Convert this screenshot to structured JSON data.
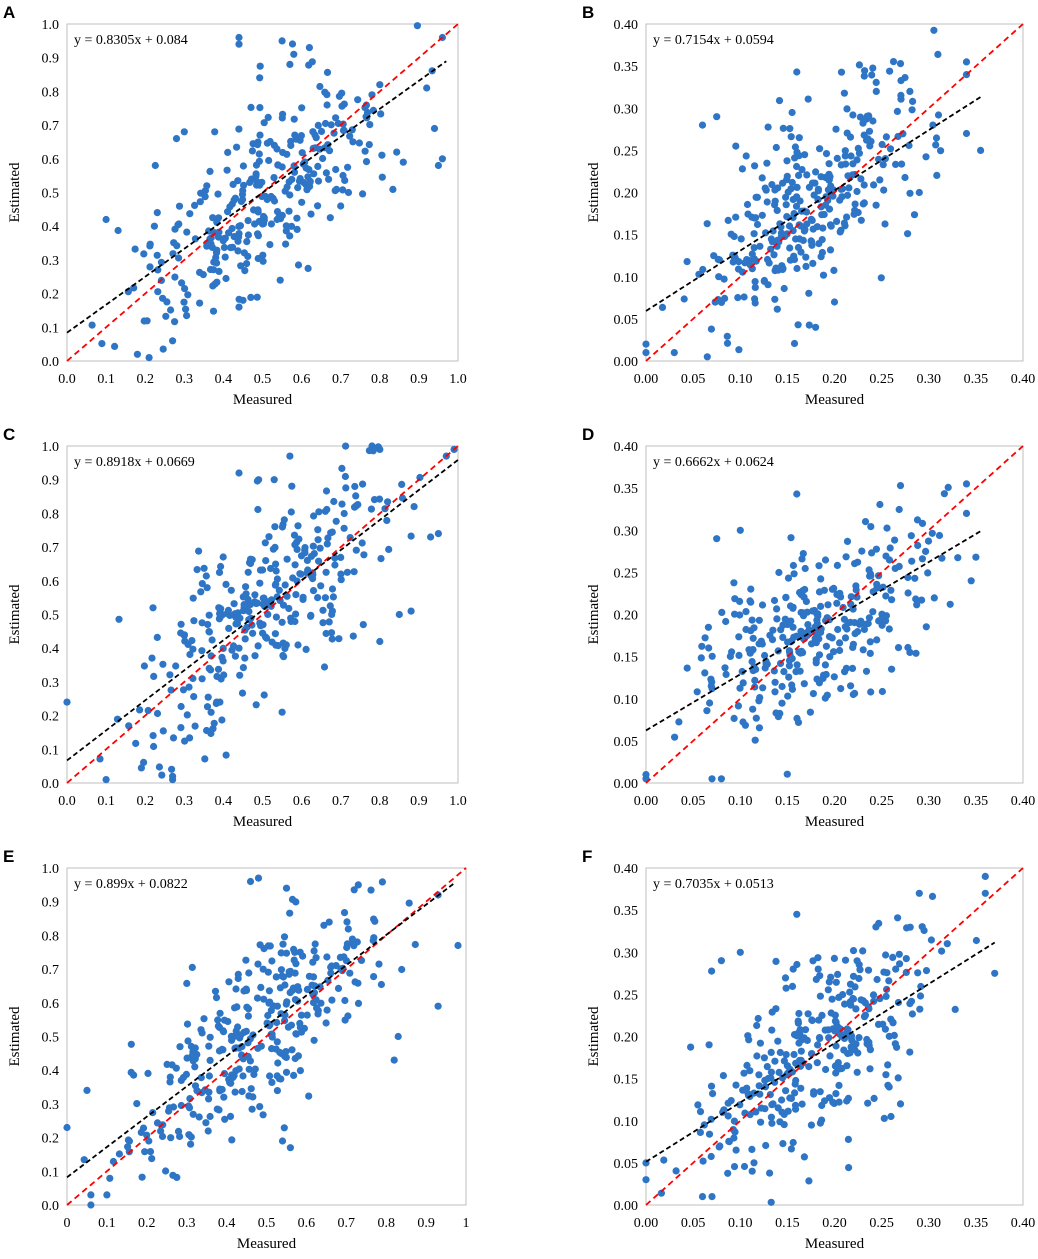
{
  "figure": {
    "colors": {
      "point": "#2e75c6",
      "fit_line": "#000000",
      "identity_line": "#ff0000",
      "frame": "#bfbfbf"
    }
  },
  "chart_data": [
    {
      "panel": "A",
      "type": "scatter",
      "xlabel": "Measured",
      "ylabel": "Estimated",
      "equation": "y = 0.8305x + 0.084",
      "fit": {
        "slope": 0.8305,
        "intercept": 0.084,
        "x_range": [
          0,
          0.97
        ]
      },
      "identity_line": true,
      "xlim": [
        0,
        1.0
      ],
      "ylim": [
        0,
        1.0
      ],
      "xticks": [
        "0.0",
        "0.1",
        "0.2",
        "0.3",
        "0.4",
        "0.5",
        "0.6",
        "0.7",
        "0.8",
        "0.9",
        "1.0"
      ],
      "yticks": [
        "0.0",
        "0.1",
        "0.2",
        "0.3",
        "0.4",
        "0.5",
        "0.6",
        "0.7",
        "0.8",
        "0.9",
        "1.0"
      ],
      "point_count": 330,
      "spread": 0.13,
      "seed": 11,
      "points": [
        [
          0.96,
          0.96
        ],
        [
          0.44,
          0.96
        ],
        [
          0.44,
          0.94
        ],
        [
          0.55,
          0.95
        ],
        [
          0.62,
          0.93
        ],
        [
          0.58,
          0.91
        ],
        [
          0.57,
          0.88
        ],
        [
          0.92,
          0.81
        ],
        [
          0.94,
          0.69
        ],
        [
          0.96,
          0.6
        ],
        [
          0.95,
          0.58
        ],
        [
          0.1,
          0.42
        ],
        [
          0.3,
          0.68
        ],
        [
          0.28,
          0.66
        ],
        [
          0.27,
          0.06
        ],
        [
          0.18,
          0.02
        ],
        [
          0.21,
          0.01
        ],
        [
          0.44,
          0.16
        ],
        [
          0.45,
          0.18
        ],
        [
          0.78,
          0.79
        ],
        [
          0.8,
          0.82
        ],
        [
          0.86,
          0.59
        ],
        [
          0.72,
          0.5
        ],
        [
          0.7,
          0.46
        ]
      ]
    },
    {
      "panel": "B",
      "type": "scatter",
      "xlabel": "Measured",
      "ylabel": "Estimated",
      "equation": "y = 0.7154x + 0.0594",
      "fit": {
        "slope": 0.7154,
        "intercept": 0.0594,
        "x_range": [
          0,
          0.355
        ]
      },
      "identity_line": true,
      "xlim": [
        0,
        0.4
      ],
      "ylim": [
        0,
        0.4
      ],
      "xticks": [
        "0.00",
        "0.05",
        "0.10",
        "0.15",
        "0.20",
        "0.25",
        "0.30",
        "0.35",
        "0.40"
      ],
      "yticks": [
        "0.00",
        "0.05",
        "0.10",
        "0.15",
        "0.20",
        "0.25",
        "0.30",
        "0.35",
        "0.40"
      ],
      "point_count": 330,
      "spread": 0.052,
      "seed": 23,
      "points": [
        [
          0.34,
          0.355
        ],
        [
          0.27,
          0.353
        ],
        [
          0.16,
          0.343
        ],
        [
          0.34,
          0.34
        ],
        [
          0.355,
          0.25
        ],
        [
          0.34,
          0.27
        ],
        [
          0.075,
          0.29
        ],
        [
          0.06,
          0.28
        ],
        [
          0.155,
          0.295
        ],
        [
          0.28,
          0.32
        ],
        [
          0.065,
          0.005
        ],
        [
          0.0,
          0.02
        ],
        [
          0.0,
          0.01
        ],
        [
          0.03,
          0.01
        ],
        [
          0.18,
          0.04
        ],
        [
          0.2,
          0.07
        ],
        [
          0.29,
          0.2
        ]
      ]
    },
    {
      "panel": "C",
      "type": "scatter",
      "xlabel": "Measured",
      "ylabel": "Estimated",
      "equation": "y = 0.8918x + 0.0669",
      "fit": {
        "slope": 0.8918,
        "intercept": 0.0669,
        "x_range": [
          0,
          1.0
        ]
      },
      "identity_line": true,
      "xlim": [
        0,
        1.0
      ],
      "ylim": [
        0,
        1.0
      ],
      "xticks": [
        "0.0",
        "0.1",
        "0.2",
        "0.3",
        "0.4",
        "0.5",
        "0.6",
        "0.7",
        "0.8",
        "0.9",
        "1.0"
      ],
      "yticks": [
        "0.0",
        "0.1",
        "0.2",
        "0.3",
        "0.4",
        "0.5",
        "0.6",
        "0.7",
        "0.8",
        "0.9",
        "1.0"
      ],
      "point_count": 330,
      "spread": 0.13,
      "seed": 37,
      "points": [
        [
          0.0,
          0.24
        ],
        [
          0.78,
          1.0
        ],
        [
          0.8,
          0.99
        ],
        [
          0.99,
          0.99
        ],
        [
          0.97,
          0.97
        ],
        [
          0.57,
          0.97
        ],
        [
          0.44,
          0.92
        ],
        [
          0.49,
          0.9
        ],
        [
          0.53,
          0.9
        ],
        [
          0.95,
          0.74
        ],
        [
          0.93,
          0.73
        ],
        [
          0.27,
          0.01
        ],
        [
          0.27,
          0.02
        ],
        [
          0.1,
          0.01
        ],
        [
          0.55,
          0.21
        ],
        [
          0.88,
          0.51
        ],
        [
          0.85,
          0.5
        ],
        [
          0.8,
          0.42
        ],
        [
          0.22,
          0.52
        ]
      ]
    },
    {
      "panel": "D",
      "type": "scatter",
      "xlabel": "Measured",
      "ylabel": "Estimated",
      "equation": "y = 0.6662x + 0.0624",
      "fit": {
        "slope": 0.6662,
        "intercept": 0.0624,
        "x_range": [
          0,
          0.355
        ]
      },
      "identity_line": true,
      "xlim": [
        0,
        0.4
      ],
      "ylim": [
        0,
        0.4
      ],
      "xticks": [
        "0.00",
        "0.05",
        "0.10",
        "0.15",
        "0.20",
        "0.25",
        "0.30",
        "0.35",
        "0.40"
      ],
      "yticks": [
        "0.00",
        "0.05",
        "0.10",
        "0.15",
        "0.20",
        "0.25",
        "0.30",
        "0.35",
        "0.40"
      ],
      "point_count": 330,
      "spread": 0.052,
      "seed": 41,
      "points": [
        [
          0.34,
          0.355
        ],
        [
          0.16,
          0.343
        ],
        [
          0.27,
          0.353
        ],
        [
          0.35,
          0.268
        ],
        [
          0.345,
          0.24
        ],
        [
          0.34,
          0.32
        ],
        [
          0.075,
          0.29
        ],
        [
          0.1,
          0.3
        ],
        [
          0.07,
          0.005
        ],
        [
          0.08,
          0.005
        ],
        [
          0.0,
          0.01
        ],
        [
          0.0,
          0.005
        ],
        [
          0.22,
          0.105
        ],
        [
          0.28,
          0.155
        ]
      ]
    },
    {
      "panel": "E",
      "type": "scatter",
      "xlabel": "Measured",
      "ylabel": "Estimated",
      "equation": "y = 0.899x + 0.0822",
      "fit": {
        "slope": 0.899,
        "intercept": 0.0822,
        "x_range": [
          0,
          0.97
        ]
      },
      "identity_line": true,
      "xlim": [
        0,
        1.0
      ],
      "ylim": [
        0,
        1.0
      ],
      "xticks": [
        "0",
        "0.1",
        "0.2",
        "0.3",
        "0.4",
        "0.5",
        "0.6",
        "0.7",
        "0.8",
        "0.9",
        "1"
      ],
      "yticks": [
        "0.0",
        "0.1",
        "0.2",
        "0.3",
        "0.4",
        "0.5",
        "0.6",
        "0.7",
        "0.8",
        "0.9",
        "1.0"
      ],
      "point_count": 340,
      "spread": 0.13,
      "seed": 53,
      "points": [
        [
          0.48,
          0.97
        ],
        [
          0.46,
          0.96
        ],
        [
          0.55,
          0.94
        ],
        [
          0.73,
          0.95
        ],
        [
          0.93,
          0.92
        ],
        [
          0.98,
          0.77
        ],
        [
          0.93,
          0.59
        ],
        [
          0.06,
          0.0
        ],
        [
          0.06,
          0.03
        ],
        [
          0.1,
          0.03
        ],
        [
          0.0,
          0.23
        ],
        [
          0.05,
          0.34
        ],
        [
          0.56,
          0.17
        ],
        [
          0.54,
          0.19
        ],
        [
          0.83,
          0.5
        ],
        [
          0.82,
          0.43
        ]
      ]
    },
    {
      "panel": "F",
      "type": "scatter",
      "xlabel": "Measured",
      "ylabel": "Estimated",
      "equation": "y = 0.7035x + 0.0513",
      "fit": {
        "slope": 0.7035,
        "intercept": 0.0513,
        "x_range": [
          0,
          0.37
        ]
      },
      "identity_line": true,
      "xlim": [
        0,
        0.4
      ],
      "ylim": [
        0,
        0.4
      ],
      "xticks": [
        "0.00",
        "0.05",
        "0.10",
        "0.15",
        "0.20",
        "0.25",
        "0.30",
        "0.35",
        "0.40"
      ],
      "yticks": [
        "0.00",
        "0.05",
        "0.10",
        "0.15",
        "0.20",
        "0.25",
        "0.30",
        "0.35",
        "0.40"
      ],
      "point_count": 330,
      "spread": 0.052,
      "seed": 67,
      "points": [
        [
          0.36,
          0.39
        ],
        [
          0.16,
          0.345
        ],
        [
          0.36,
          0.37
        ],
        [
          0.37,
          0.275
        ],
        [
          0.29,
          0.37
        ],
        [
          0.08,
          0.29
        ],
        [
          0.1,
          0.3
        ],
        [
          0.07,
          0.01
        ],
        [
          0.06,
          0.01
        ],
        [
          0.0,
          0.05
        ],
        [
          0.0,
          0.03
        ],
        [
          0.26,
          0.105
        ],
        [
          0.27,
          0.12
        ]
      ]
    }
  ]
}
